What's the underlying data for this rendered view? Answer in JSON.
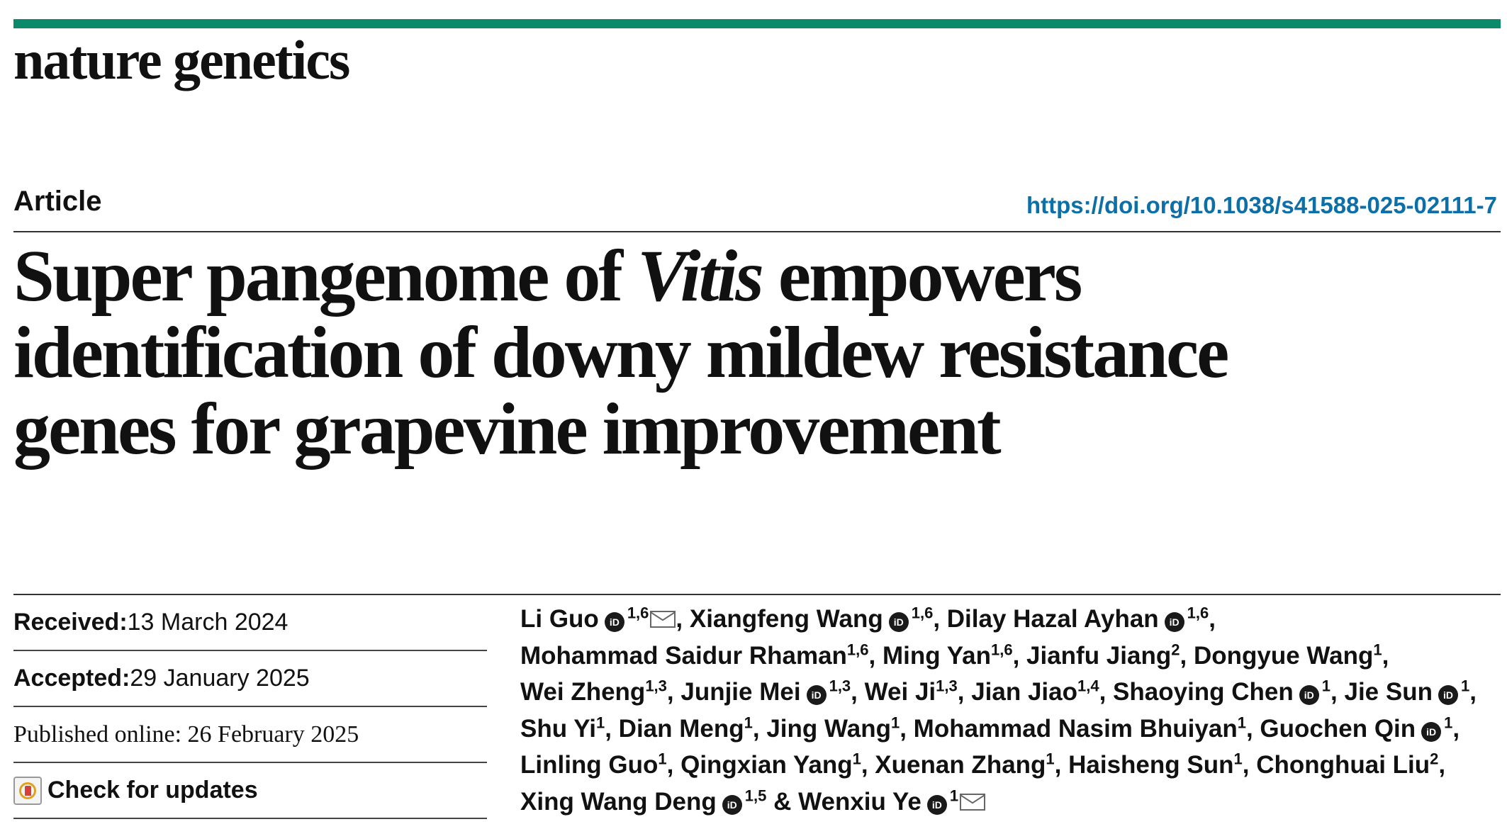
{
  "journal": {
    "name": "nature genetics"
  },
  "header": {
    "article_type": "Article",
    "doi": "https://doi.org/10.1038/s41588-025-02111-7"
  },
  "title": {
    "line1_part1": "Super pangenome of ",
    "line1_italic": "Vitis",
    "line1_part2": " empowers",
    "line2": "identification of downy mildew resistance",
    "line3": "genes for grapevine improvement"
  },
  "dates": {
    "received_label": "Received:",
    "received": " 13 March 2024",
    "accepted_label": "Accepted:",
    "accepted": " 29 January 2025",
    "published": "Published online: 26 February 2025",
    "check_updates": "Check for updates"
  },
  "icons": {
    "orcid": "orcid-icon",
    "email": "email-icon",
    "updates": "check-updates-icon"
  },
  "colors": {
    "accent_bar": "#0a8a6a",
    "doi_link": "#0d6fa8"
  },
  "authors": [
    [
      {
        "name": "Li Guo",
        "orcid": true,
        "aff": "1,6",
        "mail": true,
        "sep": ", "
      },
      {
        "name": "Xiangfeng Wang",
        "orcid": true,
        "aff": "1,6",
        "sep": ", "
      },
      {
        "name": "Dilay Hazal Ayhan",
        "orcid": true,
        "aff": "1,6",
        "sep": ","
      }
    ],
    [
      {
        "name": "Mohammad Saidur Rhaman",
        "aff": "1,6",
        "sep": ", "
      },
      {
        "name": "Ming Yan",
        "aff": "1,6",
        "sep": ", "
      },
      {
        "name": "Jianfu Jiang",
        "aff": "2",
        "sep": ", "
      },
      {
        "name": "Dongyue Wang",
        "aff": "1",
        "sep": ","
      }
    ],
    [
      {
        "name": "Wei Zheng",
        "aff": "1,3",
        "sep": ", "
      },
      {
        "name": "Junjie Mei",
        "orcid": true,
        "aff": "1,3",
        "sep": ", "
      },
      {
        "name": "Wei Ji",
        "aff": "1,3",
        "sep": ", "
      },
      {
        "name": "Jian Jiao",
        "aff": "1,4",
        "sep": ", "
      },
      {
        "name": "Shaoying Chen",
        "orcid": true,
        "aff": "1",
        "sep": ", "
      },
      {
        "name": "Jie Sun",
        "orcid": true,
        "aff": "1",
        "sep": ","
      }
    ],
    [
      {
        "name": "Shu Yi",
        "aff": "1",
        "sep": ", "
      },
      {
        "name": "Dian Meng",
        "aff": "1",
        "sep": ", "
      },
      {
        "name": "Jing Wang",
        "aff": "1",
        "sep": ", "
      },
      {
        "name": "Mohammad Nasim Bhuiyan",
        "aff": "1",
        "sep": ", "
      },
      {
        "name": "Guochen Qin",
        "orcid": true,
        "aff": "1",
        "sep": ","
      }
    ],
    [
      {
        "name": "Linling Guo",
        "aff": "1",
        "sep": ", "
      },
      {
        "name": "Qingxian Yang",
        "aff": "1",
        "sep": ", "
      },
      {
        "name": "Xuenan Zhang",
        "aff": "1",
        "sep": ", "
      },
      {
        "name": "Haisheng Sun",
        "aff": "1",
        "sep": ", "
      },
      {
        "name": "Chonghuai Liu",
        "aff": "2",
        "sep": ","
      }
    ],
    [
      {
        "name": "Xing Wang Deng",
        "orcid": true,
        "aff": "1,5",
        "sep": " & "
      },
      {
        "name": "Wenxiu Ye",
        "orcid": true,
        "aff": "1",
        "mail": true,
        "sep": ""
      }
    ]
  ]
}
